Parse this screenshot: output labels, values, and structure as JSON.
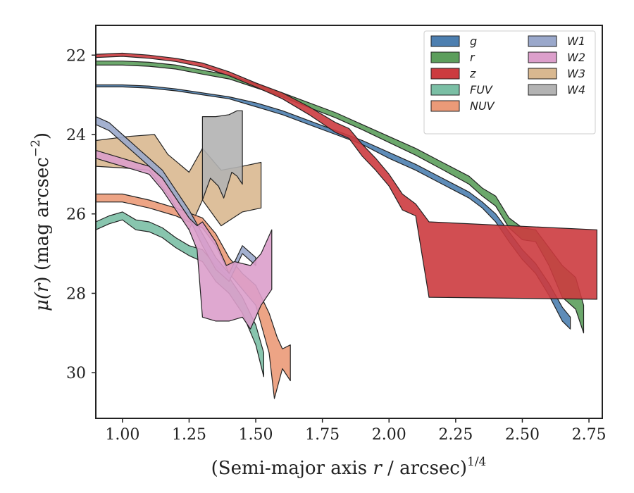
{
  "chart_data": {
    "type": "area",
    "xlabel_main": "(Semi-major axis ",
    "xlabel_var": "r",
    "xlabel_unit": " / arcsec)",
    "xlabel_exp": "1/4",
    "ylabel_mu": "μ(",
    "ylabel_var": "r",
    "ylabel_rest": ") (mag arcsec",
    "ylabel_exp": "−2",
    "ylabel_close": ")",
    "xlim": [
      0.9,
      2.8
    ],
    "ylim": [
      31.15,
      21.25
    ],
    "y_inverted": true,
    "xticks": [
      1.0,
      1.25,
      1.5,
      1.75,
      2.0,
      2.25,
      2.5,
      2.75
    ],
    "xtick_labels": [
      "1.00",
      "1.25",
      "1.50",
      "1.75",
      "2.00",
      "2.25",
      "2.50",
      "2.75"
    ],
    "yticks": [
      22,
      24,
      26,
      28,
      30
    ],
    "ytick_labels": [
      "22",
      "24",
      "26",
      "28",
      "30"
    ],
    "grid": false,
    "legend_position": "top-right",
    "legend_columns": 2,
    "series": [
      {
        "name": "W3",
        "color": "#d9b890",
        "upper": [
          [
            0.9,
            24.15
          ],
          [
            1.02,
            24.05
          ],
          [
            1.12,
            24.0
          ],
          [
            1.17,
            24.5
          ],
          [
            1.25,
            24.95
          ],
          [
            1.3,
            24.35
          ],
          [
            1.37,
            24.9
          ],
          [
            1.45,
            24.8
          ],
          [
            1.52,
            24.7
          ]
        ],
        "lower": [
          [
            0.9,
            24.8
          ],
          [
            1.02,
            24.85
          ],
          [
            1.1,
            24.9
          ],
          [
            1.18,
            25.6
          ],
          [
            1.25,
            26.4
          ],
          [
            1.3,
            25.65
          ],
          [
            1.37,
            26.3
          ],
          [
            1.45,
            25.95
          ],
          [
            1.52,
            25.85
          ]
        ]
      },
      {
        "name": "W4",
        "color": "#b3b3b3",
        "upper": [
          [
            1.3,
            23.55
          ],
          [
            1.35,
            23.55
          ],
          [
            1.4,
            23.5
          ],
          [
            1.43,
            23.4
          ],
          [
            1.45,
            23.4
          ]
        ],
        "lower": [
          [
            1.3,
            25.65
          ],
          [
            1.33,
            25.1
          ],
          [
            1.36,
            25.3
          ],
          [
            1.38,
            25.6
          ],
          [
            1.41,
            24.95
          ],
          [
            1.43,
            25.05
          ],
          [
            1.45,
            25.25
          ]
        ]
      },
      {
        "name": "NUV",
        "color": "#eb9a78",
        "upper": [
          [
            0.9,
            25.5
          ],
          [
            1.0,
            25.5
          ],
          [
            1.1,
            25.65
          ],
          [
            1.2,
            25.85
          ],
          [
            1.3,
            26.1
          ],
          [
            1.35,
            26.5
          ],
          [
            1.4,
            27.1
          ],
          [
            1.45,
            27.5
          ],
          [
            1.5,
            27.8
          ],
          [
            1.55,
            28.5
          ],
          [
            1.58,
            29.1
          ],
          [
            1.6,
            29.4
          ],
          [
            1.63,
            29.3
          ]
        ],
        "lower": [
          [
            0.9,
            25.7
          ],
          [
            1.0,
            25.7
          ],
          [
            1.1,
            25.85
          ],
          [
            1.2,
            26.05
          ],
          [
            1.3,
            26.35
          ],
          [
            1.35,
            26.8
          ],
          [
            1.4,
            27.5
          ],
          [
            1.45,
            27.9
          ],
          [
            1.5,
            28.3
          ],
          [
            1.55,
            29.5
          ],
          [
            1.57,
            30.65
          ],
          [
            1.6,
            29.9
          ],
          [
            1.63,
            30.2
          ]
        ]
      },
      {
        "name": "FUV",
        "color": "#7bbfa5",
        "upper": [
          [
            0.9,
            26.2
          ],
          [
            0.95,
            26.05
          ],
          [
            1.0,
            25.95
          ],
          [
            1.05,
            26.15
          ],
          [
            1.1,
            26.2
          ],
          [
            1.15,
            26.35
          ],
          [
            1.2,
            26.6
          ],
          [
            1.25,
            26.8
          ],
          [
            1.3,
            26.9
          ],
          [
            1.35,
            27.3
          ],
          [
            1.4,
            27.6
          ],
          [
            1.45,
            28.1
          ],
          [
            1.5,
            28.8
          ],
          [
            1.53,
            29.5
          ]
        ],
        "lower": [
          [
            0.9,
            26.4
          ],
          [
            0.95,
            26.25
          ],
          [
            1.0,
            26.15
          ],
          [
            1.05,
            26.4
          ],
          [
            1.1,
            26.45
          ],
          [
            1.15,
            26.6
          ],
          [
            1.2,
            26.85
          ],
          [
            1.25,
            27.05
          ],
          [
            1.3,
            27.2
          ],
          [
            1.35,
            27.7
          ],
          [
            1.4,
            28.0
          ],
          [
            1.45,
            28.5
          ],
          [
            1.5,
            29.3
          ],
          [
            1.53,
            30.1
          ]
        ]
      },
      {
        "name": "W1",
        "color": "#9aa8cb",
        "upper": [
          [
            0.9,
            23.55
          ],
          [
            0.95,
            23.7
          ],
          [
            1.0,
            24.0
          ],
          [
            1.05,
            24.3
          ],
          [
            1.1,
            24.6
          ],
          [
            1.15,
            24.9
          ],
          [
            1.2,
            25.4
          ],
          [
            1.25,
            25.9
          ],
          [
            1.3,
            26.5
          ],
          [
            1.35,
            27.1
          ],
          [
            1.4,
            27.5
          ],
          [
            1.45,
            26.8
          ],
          [
            1.5,
            27.1
          ]
        ],
        "lower": [
          [
            0.9,
            23.75
          ],
          [
            0.95,
            23.9
          ],
          [
            1.0,
            24.2
          ],
          [
            1.05,
            24.5
          ],
          [
            1.1,
            24.8
          ],
          [
            1.15,
            25.1
          ],
          [
            1.2,
            25.6
          ],
          [
            1.25,
            26.1
          ],
          [
            1.3,
            26.8
          ],
          [
            1.35,
            27.4
          ],
          [
            1.4,
            27.7
          ],
          [
            1.45,
            27.0
          ],
          [
            1.5,
            27.3
          ]
        ]
      },
      {
        "name": "W2",
        "color": "#dc9fcb",
        "upper": [
          [
            0.9,
            24.4
          ],
          [
            0.95,
            24.5
          ],
          [
            1.0,
            24.6
          ],
          [
            1.05,
            24.7
          ],
          [
            1.1,
            24.8
          ],
          [
            1.15,
            25.1
          ],
          [
            1.2,
            25.6
          ],
          [
            1.25,
            26.1
          ],
          [
            1.28,
            26.3
          ],
          [
            1.3,
            26.2
          ],
          [
            1.35,
            26.7
          ],
          [
            1.39,
            27.3
          ],
          [
            1.42,
            27.2
          ],
          [
            1.48,
            27.3
          ],
          [
            1.52,
            27.0
          ],
          [
            1.56,
            26.4
          ]
        ],
        "lower": [
          [
            0.9,
            24.6
          ],
          [
            0.95,
            24.7
          ],
          [
            1.0,
            24.8
          ],
          [
            1.05,
            24.9
          ],
          [
            1.1,
            25.0
          ],
          [
            1.15,
            25.4
          ],
          [
            1.2,
            25.9
          ],
          [
            1.25,
            26.4
          ],
          [
            1.28,
            26.9
          ],
          [
            1.3,
            28.6
          ],
          [
            1.35,
            28.7
          ],
          [
            1.4,
            28.7
          ],
          [
            1.45,
            28.6
          ],
          [
            1.48,
            28.9
          ],
          [
            1.52,
            28.3
          ],
          [
            1.56,
            27.9
          ]
        ]
      },
      {
        "name": "g",
        "color": "#4d7fb0",
        "upper": [
          [
            0.9,
            22.75
          ],
          [
            1.0,
            22.75
          ],
          [
            1.1,
            22.78
          ],
          [
            1.2,
            22.85
          ],
          [
            1.3,
            22.95
          ],
          [
            1.4,
            23.05
          ],
          [
            1.5,
            23.2
          ],
          [
            1.6,
            23.4
          ],
          [
            1.7,
            23.65
          ],
          [
            1.8,
            23.9
          ],
          [
            1.9,
            24.15
          ],
          [
            2.0,
            24.45
          ],
          [
            2.1,
            24.75
          ],
          [
            2.2,
            25.1
          ],
          [
            2.3,
            25.45
          ],
          [
            2.35,
            25.7
          ],
          [
            2.4,
            26.0
          ],
          [
            2.45,
            26.45
          ],
          [
            2.5,
            26.9
          ],
          [
            2.55,
            27.25
          ],
          [
            2.6,
            27.75
          ],
          [
            2.65,
            28.35
          ],
          [
            2.68,
            28.6
          ]
        ],
        "lower": [
          [
            0.9,
            22.8
          ],
          [
            1.0,
            22.8
          ],
          [
            1.1,
            22.83
          ],
          [
            1.2,
            22.9
          ],
          [
            1.3,
            23.0
          ],
          [
            1.4,
            23.1
          ],
          [
            1.5,
            23.3
          ],
          [
            1.6,
            23.5
          ],
          [
            1.7,
            23.75
          ],
          [
            1.8,
            24.0
          ],
          [
            1.9,
            24.25
          ],
          [
            2.0,
            24.6
          ],
          [
            2.1,
            24.9
          ],
          [
            2.2,
            25.25
          ],
          [
            2.3,
            25.6
          ],
          [
            2.35,
            25.85
          ],
          [
            2.4,
            26.2
          ],
          [
            2.45,
            26.7
          ],
          [
            2.5,
            27.15
          ],
          [
            2.55,
            27.5
          ],
          [
            2.6,
            28.05
          ],
          [
            2.65,
            28.7
          ],
          [
            2.68,
            28.9
          ]
        ]
      },
      {
        "name": "r",
        "color": "#5c9e5c",
        "upper": [
          [
            0.9,
            22.15
          ],
          [
            1.0,
            22.15
          ],
          [
            1.1,
            22.18
          ],
          [
            1.2,
            22.25
          ],
          [
            1.3,
            22.38
          ],
          [
            1.4,
            22.5
          ],
          [
            1.5,
            22.72
          ],
          [
            1.6,
            22.95
          ],
          [
            1.7,
            23.2
          ],
          [
            1.8,
            23.45
          ],
          [
            1.9,
            23.75
          ],
          [
            2.0,
            24.05
          ],
          [
            2.1,
            24.35
          ],
          [
            2.2,
            24.7
          ],
          [
            2.3,
            25.05
          ],
          [
            2.35,
            25.35
          ],
          [
            2.4,
            25.55
          ],
          [
            2.45,
            26.1
          ],
          [
            2.5,
            26.35
          ],
          [
            2.55,
            26.4
          ],
          [
            2.6,
            26.85
          ],
          [
            2.65,
            27.3
          ],
          [
            2.7,
            27.6
          ],
          [
            2.73,
            28.3
          ]
        ],
        "lower": [
          [
            0.9,
            22.25
          ],
          [
            1.0,
            22.25
          ],
          [
            1.1,
            22.28
          ],
          [
            1.2,
            22.35
          ],
          [
            1.3,
            22.48
          ],
          [
            1.4,
            22.6
          ],
          [
            1.5,
            22.82
          ],
          [
            1.6,
            23.05
          ],
          [
            1.7,
            23.32
          ],
          [
            1.8,
            23.58
          ],
          [
            1.9,
            23.88
          ],
          [
            2.0,
            24.2
          ],
          [
            2.1,
            24.52
          ],
          [
            2.2,
            24.88
          ],
          [
            2.3,
            25.25
          ],
          [
            2.35,
            25.55
          ],
          [
            2.4,
            25.8
          ],
          [
            2.45,
            26.35
          ],
          [
            2.5,
            26.65
          ],
          [
            2.55,
            26.7
          ],
          [
            2.6,
            27.3
          ],
          [
            2.65,
            28.1
          ],
          [
            2.7,
            28.4
          ],
          [
            2.73,
            29.0
          ]
        ]
      },
      {
        "name": "z",
        "color": "#cc3b3f",
        "upper": [
          [
            0.9,
            21.98
          ],
          [
            1.0,
            21.95
          ],
          [
            1.1,
            22.0
          ],
          [
            1.2,
            22.08
          ],
          [
            1.3,
            22.2
          ],
          [
            1.4,
            22.42
          ],
          [
            1.5,
            22.7
          ],
          [
            1.6,
            22.95
          ],
          [
            1.7,
            23.3
          ],
          [
            1.8,
            23.7
          ],
          [
            1.85,
            23.85
          ],
          [
            1.9,
            24.25
          ],
          [
            1.95,
            24.6
          ],
          [
            2.0,
            25.0
          ],
          [
            2.05,
            25.5
          ],
          [
            2.1,
            25.75
          ],
          [
            2.15,
            26.2
          ],
          [
            2.78,
            26.4
          ]
        ],
        "lower": [
          [
            0.9,
            22.06
          ],
          [
            1.0,
            22.03
          ],
          [
            1.1,
            22.08
          ],
          [
            1.2,
            22.16
          ],
          [
            1.3,
            22.3
          ],
          [
            1.4,
            22.52
          ],
          [
            1.5,
            22.8
          ],
          [
            1.6,
            23.1
          ],
          [
            1.7,
            23.5
          ],
          [
            1.8,
            23.95
          ],
          [
            1.85,
            24.1
          ],
          [
            1.9,
            24.55
          ],
          [
            1.95,
            24.9
          ],
          [
            2.0,
            25.3
          ],
          [
            2.05,
            25.9
          ],
          [
            2.1,
            26.05
          ],
          [
            2.15,
            28.1
          ],
          [
            2.78,
            28.15
          ]
        ]
      }
    ],
    "legend": [
      {
        "label": "g",
        "color": "#4d7fb0"
      },
      {
        "label": "r",
        "color": "#5c9e5c"
      },
      {
        "label": "z",
        "color": "#cc3b3f"
      },
      {
        "label": "FUV",
        "color": "#7bbfa5"
      },
      {
        "label": "NUV",
        "color": "#eb9a78"
      },
      {
        "label": "W1",
        "color": "#9aa8cb"
      },
      {
        "label": "W2",
        "color": "#dc9fcb"
      },
      {
        "label": "W3",
        "color": "#d9b890"
      },
      {
        "label": "W4",
        "color": "#b3b3b3"
      }
    ]
  }
}
